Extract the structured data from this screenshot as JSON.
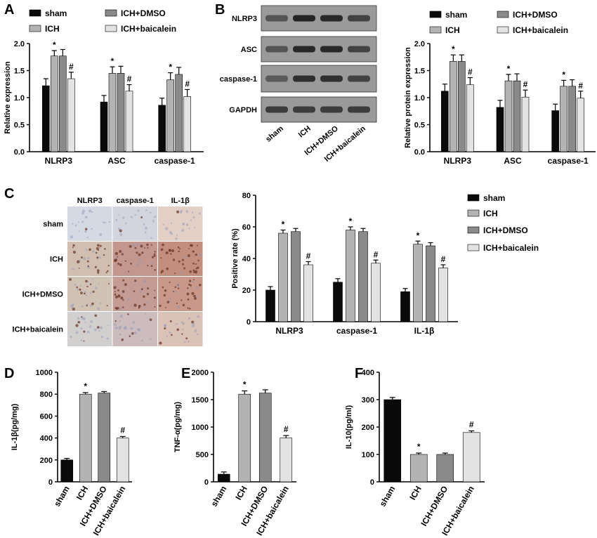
{
  "colors": {
    "sham": "#0a0a0a",
    "ICH": "#b3b3b3",
    "ICH+DMSO": "#8a8a8a",
    "ICH+baicalein": "#e3e3e3",
    "axis": "#000000",
    "blot_bg": "#9a9a9a",
    "band": "#1c1c1c"
  },
  "groups": [
    "sham",
    "ICH",
    "ICH+DMSO",
    "ICH+baicalein"
  ],
  "chart_data": [
    {
      "id": "A",
      "panel_label": "A",
      "type": "bar",
      "title": "",
      "xlabel": "",
      "ylabel": "Relative expression",
      "ylim": [
        0,
        2.0
      ],
      "yticks": [
        "0.0",
        "0.5",
        "1.0",
        "1.5",
        "2.0"
      ],
      "categories": [
        "NLRP3",
        "ASC",
        "caspase-1"
      ],
      "legend_position": "top",
      "series": [
        {
          "name": "sham",
          "values": [
            1.22,
            0.92,
            0.86
          ],
          "errors": [
            0.13,
            0.12,
            0.13
          ],
          "marks": [
            "",
            "",
            ""
          ]
        },
        {
          "name": "ICH",
          "values": [
            1.77,
            1.45,
            1.33
          ],
          "errors": [
            0.1,
            0.12,
            0.13
          ],
          "marks": [
            "*",
            "*",
            "*"
          ]
        },
        {
          "name": "ICH+DMSO",
          "values": [
            1.77,
            1.45,
            1.43
          ],
          "errors": [
            0.12,
            0.13,
            0.13
          ],
          "marks": [
            "",
            "",
            ""
          ]
        },
        {
          "name": "ICH+baicalein",
          "values": [
            1.35,
            1.12,
            1.02
          ],
          "errors": [
            0.12,
            0.12,
            0.13
          ],
          "marks": [
            "#",
            "#",
            "#"
          ]
        }
      ]
    },
    {
      "id": "B",
      "panel_label": "",
      "type": "bar",
      "title": "",
      "xlabel": "",
      "ylabel": "Relative protein expression",
      "ylim": [
        0,
        2.0
      ],
      "yticks": [
        "0.0",
        "0.5",
        "1.0",
        "1.5",
        "2.0"
      ],
      "categories": [
        "NLRP3",
        "ASC",
        "caspase-1"
      ],
      "legend_position": "top",
      "series": [
        {
          "name": "sham",
          "values": [
            1.12,
            0.82,
            0.76
          ],
          "errors": [
            0.13,
            0.13,
            0.12
          ],
          "marks": [
            "",
            "",
            ""
          ]
        },
        {
          "name": "ICH",
          "values": [
            1.67,
            1.31,
            1.21
          ],
          "errors": [
            0.12,
            0.12,
            0.11
          ],
          "marks": [
            "*",
            "*",
            "*"
          ]
        },
        {
          "name": "ICH+DMSO",
          "values": [
            1.67,
            1.31,
            1.21
          ],
          "errors": [
            0.12,
            0.13,
            0.12
          ],
          "marks": [
            "",
            "",
            ""
          ]
        },
        {
          "name": "ICH+baicalein",
          "values": [
            1.24,
            1.01,
            0.99
          ],
          "errors": [
            0.13,
            0.13,
            0.13
          ],
          "marks": [
            "#",
            "#",
            "#"
          ]
        }
      ]
    },
    {
      "id": "C",
      "panel_label": "",
      "type": "bar",
      "title": "",
      "xlabel": "",
      "ylabel": "Positive rate (%)",
      "ylim": [
        0,
        80
      ],
      "yticks": [
        "0",
        "20",
        "40",
        "60",
        "80"
      ],
      "categories": [
        "NLRP3",
        "caspase-1",
        "IL-1β"
      ],
      "legend_position": "right",
      "series": [
        {
          "name": "sham",
          "values": [
            20,
            25,
            19
          ],
          "errors": [
            2.2,
            2.2,
            2.0
          ],
          "marks": [
            "",
            "",
            ""
          ]
        },
        {
          "name": "ICH",
          "values": [
            56,
            58,
            49
          ],
          "errors": [
            2.0,
            2.0,
            2.0
          ],
          "marks": [
            "*",
            "*",
            "*"
          ]
        },
        {
          "name": "ICH+DMSO",
          "values": [
            57,
            57,
            48
          ],
          "errors": [
            2.0,
            2.0,
            2.0
          ],
          "marks": [
            "",
            "",
            ""
          ]
        },
        {
          "name": "ICH+baicalein",
          "values": [
            36,
            37,
            34
          ],
          "errors": [
            2.0,
            2.0,
            2.0
          ],
          "marks": [
            "#",
            "#",
            "#"
          ]
        }
      ]
    },
    {
      "id": "D",
      "panel_label": "D",
      "type": "bar",
      "title": "",
      "xlabel": "",
      "ylabel": "IL-1β(pg/mg)",
      "ylim": [
        0,
        1000
      ],
      "yticks": [
        "0",
        "200",
        "400",
        "600",
        "800",
        "1000"
      ],
      "categories": [
        "sham",
        "ICH",
        "ICH+DMSO",
        "ICH+baicalein"
      ],
      "values": [
        200,
        800,
        810,
        400
      ],
      "errors": [
        14,
        14,
        14,
        14
      ],
      "marks": [
        "",
        "*",
        "",
        "#"
      ]
    },
    {
      "id": "E",
      "panel_label": "E",
      "type": "bar",
      "title": "",
      "xlabel": "",
      "ylabel": "TNF-α(pg/mg)",
      "ylim": [
        0,
        2000
      ],
      "yticks": [
        "0",
        "500",
        "1000",
        "1500",
        "2000"
      ],
      "categories": [
        "sham",
        "ICH",
        "ICH+DMSO",
        "ICH+baicalein"
      ],
      "values": [
        140,
        1600,
        1620,
        800
      ],
      "errors": [
        40,
        60,
        60,
        45
      ],
      "marks": [
        "",
        "*",
        "",
        "#"
      ]
    },
    {
      "id": "F",
      "panel_label": "F",
      "type": "bar",
      "title": "",
      "xlabel": "",
      "ylabel": "IL-10(pg/ml)",
      "ylim": [
        0,
        400
      ],
      "yticks": [
        "0",
        "100",
        "200",
        "300",
        "400"
      ],
      "categories": [
        "sham",
        "ICH",
        "ICH+DMSO",
        "ICH+baicalein"
      ],
      "values": [
        300,
        100,
        100,
        180
      ],
      "errors": [
        8,
        5,
        5,
        6
      ],
      "marks": [
        "",
        "*",
        "",
        "#"
      ]
    }
  ],
  "western_blot": {
    "panel_label": "B",
    "proteins": [
      "NLRP3",
      "ASC",
      "caspase-1",
      "GAPDH"
    ],
    "lanes": [
      "sham",
      "ICH",
      "ICH+DMSO",
      "ICH+baicalein"
    ],
    "band_intensity": [
      [
        0.55,
        0.95,
        0.9,
        0.7
      ],
      [
        0.55,
        0.9,
        0.9,
        0.7
      ],
      [
        0.5,
        0.85,
        0.85,
        0.7
      ],
      [
        0.75,
        0.75,
        0.75,
        0.75
      ]
    ]
  },
  "ihc": {
    "panel_label": "C",
    "columns": [
      "NLRP3",
      "caspase-1",
      "IL-1β"
    ],
    "rows": [
      "sham",
      "ICH",
      "ICH+DMSO",
      "ICH+baicalein"
    ],
    "stain_level": [
      [
        0.05,
        0.08,
        0.15
      ],
      [
        0.55,
        0.75,
        0.85
      ],
      [
        0.5,
        0.7,
        0.75
      ],
      [
        0.25,
        0.35,
        0.3
      ]
    ]
  }
}
